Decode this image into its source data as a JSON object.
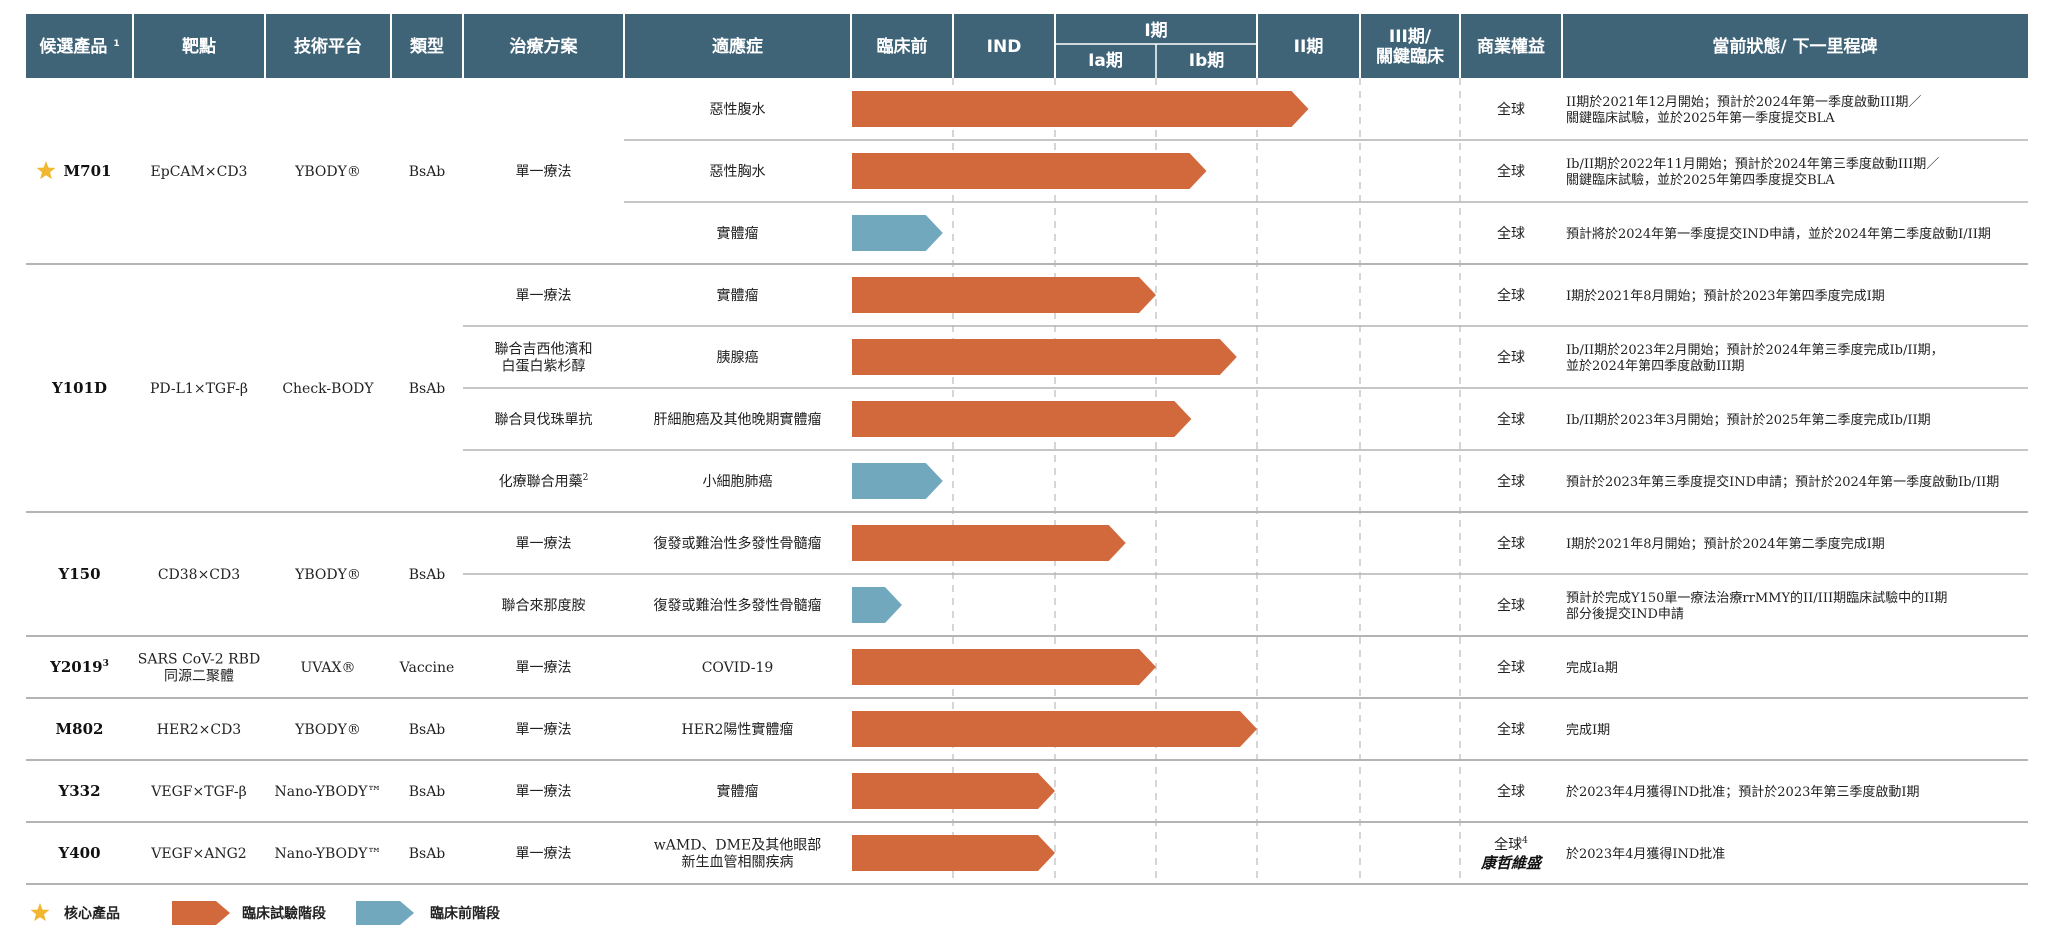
{
  "colors": {
    "header": "#3f6478",
    "clinical": "#d2693c",
    "preclinical": "#72a8bd",
    "star": "#f2b731",
    "divider": "#b4b4b4",
    "dash": "#c8c8c8"
  },
  "headers": {
    "candidate": "候選產品",
    "candidate_sup": "1",
    "target": "靶點",
    "platform": "技術平台",
    "type": "類型",
    "therapy": "治療方案",
    "indication": "適應症",
    "preclinical": "臨床前",
    "ind": "IND",
    "phase1": "I期",
    "phase1a": "Ia期",
    "phase1b": "Ib期",
    "phase2": "II期",
    "phase3_line1": "III期/",
    "phase3_line2": "關鍵臨床",
    "rights": "商業權益",
    "status": "當前狀態/ 下一里程碑"
  },
  "products": [
    {
      "name": "M701",
      "core": true,
      "target": "EpCAM×CD3",
      "platform": "YBODY®",
      "type": "BsAb"
    },
    {
      "name": "Y101D",
      "core": false,
      "target": "PD-L1×TGF-β",
      "platform": "Check-BODY",
      "type": "BsAb"
    },
    {
      "name": "Y150",
      "core": false,
      "target": "CD38×CD3",
      "platform": "YBODY®",
      "type": "BsAb"
    },
    {
      "name": "Y2019",
      "name_sup": "3",
      "core": false,
      "target": [
        "SARS CoV-2 RBD",
        "同源二聚體"
      ],
      "platform": "UVAX®",
      "type": "Vaccine"
    },
    {
      "name": "M802",
      "core": false,
      "target": "HER2×CD3",
      "platform": "YBODY®",
      "type": "BsAb"
    },
    {
      "name": "Y332",
      "core": false,
      "target": "VEGF×TGF-β",
      "platform": "Nano-YBODY™",
      "type": "BsAb"
    },
    {
      "name": "Y400",
      "core": false,
      "target": "VEGF×ANG2",
      "platform": "Nano-YBODY™",
      "type": "BsAb"
    }
  ],
  "therapies": [
    {
      "text": [
        "單一療法"
      ]
    },
    {
      "text": [
        "單一療法"
      ]
    },
    {
      "text": [
        "聯合吉西他濱和",
        "白蛋白紫杉醇"
      ]
    },
    {
      "text": [
        "聯合貝伐珠單抗"
      ]
    },
    {
      "text": [
        "化療聯合用藥"
      ],
      "sup": "2"
    },
    {
      "text": [
        "單一療法"
      ]
    },
    {
      "text": [
        "聯合來那度胺"
      ]
    },
    {
      "text": [
        "單一療法"
      ]
    },
    {
      "text": [
        "單一療法"
      ]
    },
    {
      "text": [
        "單一療法"
      ]
    },
    {
      "text": [
        "單一療法"
      ]
    }
  ],
  "rows": [
    {
      "indication": [
        "惡性腹水"
      ],
      "stage": "clinical",
      "progress": 4.5,
      "rights": "全球",
      "status": [
        "II期於2021年12月開始；預計於2024年第一季度啟動III期／",
        "關鍵臨床試驗，並於2025年第一季度提交BLA"
      ]
    },
    {
      "indication": [
        "惡性胸水"
      ],
      "stage": "clinical",
      "progress": 3.5,
      "rights": "全球",
      "status": [
        "Ib/II期於2022年11月開始；預計於2024年第三季度啟動III期／",
        "關鍵臨床試驗，並於2025年第四季度提交BLA"
      ]
    },
    {
      "indication": [
        "實體瘤"
      ],
      "stage": "preclinical",
      "progress": 0.9,
      "rights": "全球",
      "status": [
        "預計將於2024年第一季度提交IND申請，並於2024年第二季度啟動I/II期"
      ]
    },
    {
      "indication": [
        "實體瘤"
      ],
      "stage": "clinical",
      "progress": 3.0,
      "rights": "全球",
      "status": [
        "I期於2021年8月開始；預計於2023年第四季度完成I期"
      ]
    },
    {
      "indication": [
        "胰腺癌"
      ],
      "stage": "clinical",
      "progress": 3.8,
      "rights": "全球",
      "status": [
        "Ib/II期於2023年2月開始；預計於2024年第三季度完成Ib/II期，",
        "並於2024年第四季度啟動III期"
      ]
    },
    {
      "indication": [
        "肝細胞癌及其他晚期實體瘤"
      ],
      "stage": "clinical",
      "progress": 3.35,
      "rights": "全球",
      "status": [
        "Ib/II期於2023年3月開始；預計於2025年第二季度完成Ib/II期"
      ]
    },
    {
      "indication": [
        "小細胞肺癌"
      ],
      "stage": "preclinical",
      "progress": 0.9,
      "rights": "全球",
      "status": [
        "預計於2023年第三季度提交IND申請；預計於2024年第一季度啟動Ib/II期"
      ]
    },
    {
      "indication": [
        "復發或難治性多發性骨髓瘤"
      ],
      "stage": "clinical",
      "progress": 2.7,
      "rights": "全球",
      "status": [
        "I期於2021年8月開始；預計於2024年第二季度完成I期"
      ]
    },
    {
      "indication": [
        "復發或難治性多發性骨髓瘤"
      ],
      "stage": "preclinical",
      "progress": 0.5,
      "rights": "全球",
      "status": [
        "預計於完成Y150單一療法治療rrMMY的II/III期臨床試驗中的II期",
        "部分後提交IND申請"
      ]
    },
    {
      "indication": [
        "COVID-19"
      ],
      "stage": "clinical",
      "progress": 3.0,
      "rights": "全球",
      "status": [
        "完成Ia期"
      ]
    },
    {
      "indication": [
        "HER2陽性實體瘤"
      ],
      "stage": "clinical",
      "progress": 4.0,
      "rights": "全球",
      "status": [
        "完成I期"
      ]
    },
    {
      "indication": [
        "實體瘤"
      ],
      "stage": "clinical",
      "progress": 2.0,
      "rights": "全球",
      "status": [
        "於2023年4月獲得IND批准；預計於2023年第三季度啟動I期"
      ]
    },
    {
      "indication": [
        "wAMD、DME及其他眼部",
        "新生血管相關疾病"
      ],
      "stage": "clinical",
      "progress": 2.0,
      "rights": "全球",
      "rights_sup": "4",
      "rights_partner": "康哲維盛",
      "status": [
        "於2023年4月獲得IND批准"
      ]
    }
  ],
  "legend": {
    "core": "核心產品",
    "clinical": "臨床試驗階段",
    "preclinical": "臨床前階段"
  }
}
